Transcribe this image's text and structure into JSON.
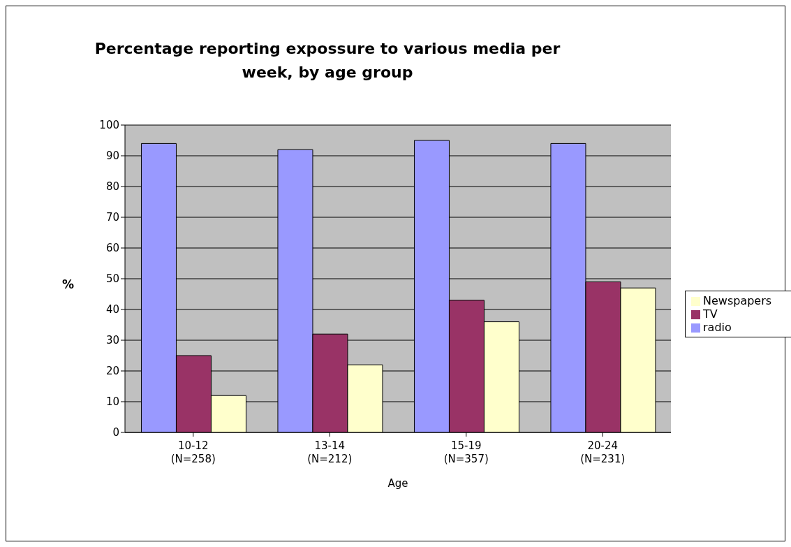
{
  "chart_data": {
    "type": "bar",
    "title": "Percentage reporting expossure to various media per week, by age group",
    "xlabel": "Age",
    "ylabel": "%",
    "categories": [
      "10-12\n(N=258)",
      "13-14\n(N=212)",
      "15-19\n(N=357)",
      "20-24\n(N=231)"
    ],
    "series": [
      {
        "name": "radio",
        "color": "#9999ff",
        "values": [
          94,
          92,
          95,
          94
        ]
      },
      {
        "name": "TV",
        "color": "#993366",
        "values": [
          25,
          32,
          43,
          49
        ]
      },
      {
        "name": "Newspapers",
        "color": "#ffffcc",
        "values": [
          12,
          22,
          36,
          47
        ]
      }
    ],
    "ylim": [
      0,
      100
    ],
    "yticks": [
      0,
      10,
      20,
      30,
      40,
      50,
      60,
      70,
      80,
      90,
      100
    ],
    "grid": "y",
    "legend": "right"
  }
}
